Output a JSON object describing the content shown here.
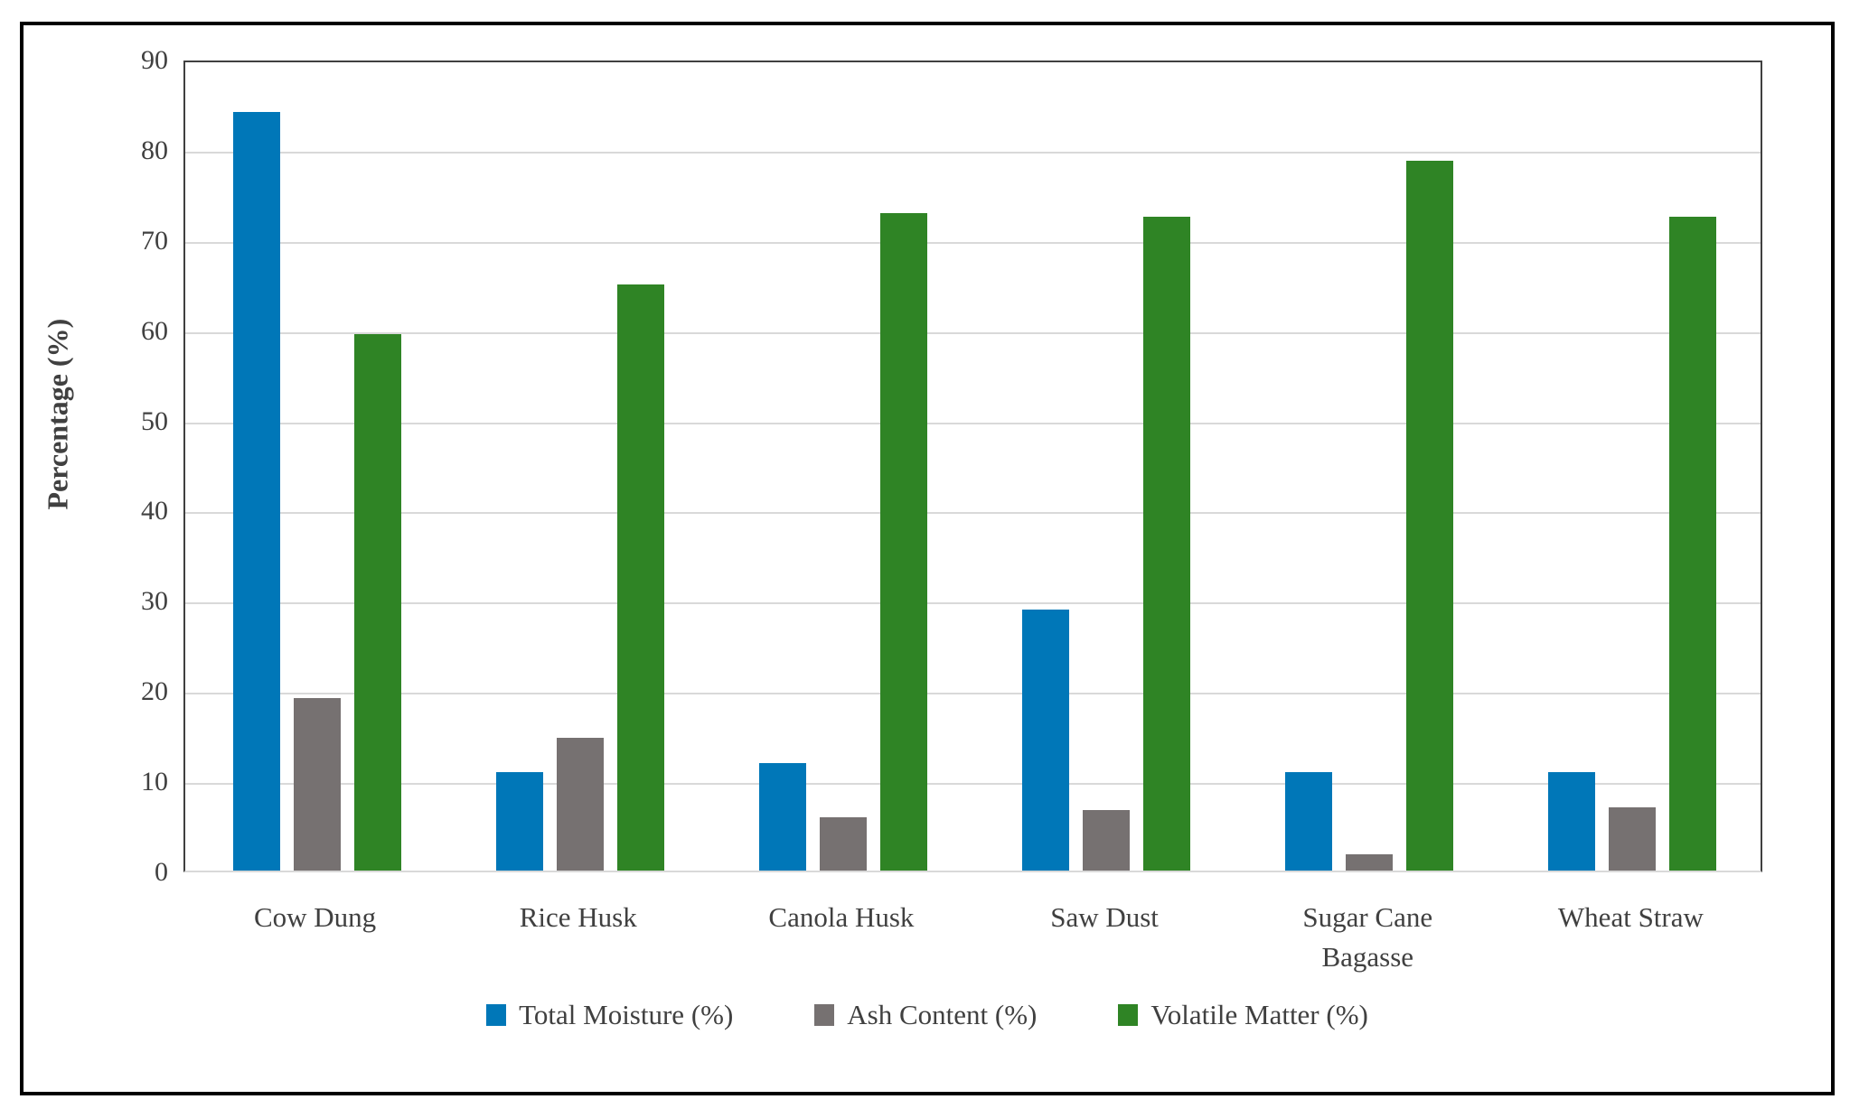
{
  "chart_data": {
    "type": "bar",
    "categories": [
      "Cow Dung",
      "Rice Husk",
      "Canola Husk",
      "Saw Dust",
      "Sugar Cane Bagasse",
      "Wheat Straw"
    ],
    "series": [
      {
        "name": "Total Moisture (%)",
        "color": "#0077B8",
        "values": [
          84.3,
          10.9,
          11.9,
          29.0,
          10.9,
          10.9
        ]
      },
      {
        "name": "Ash Content (%)",
        "color": "#767171",
        "values": [
          19.2,
          14.8,
          5.9,
          6.7,
          1.8,
          7.0
        ]
      },
      {
        "name": "Volatile Matter (%)",
        "color": "#2F8425",
        "values": [
          59.6,
          65.1,
          73.0,
          72.6,
          78.9,
          72.6
        ]
      }
    ],
    "title": "",
    "xlabel": "",
    "ylabel": "Percentage (%)",
    "ylim": [
      0,
      90
    ],
    "ytick_step": 10,
    "yticks": [
      0,
      10,
      20,
      30,
      40,
      50,
      60,
      70,
      80,
      90
    ],
    "grid": true,
    "legend_position": "bottom-center",
    "colors": {
      "gridline": "#D9D9D9",
      "axis_line": "#404040",
      "text": "#404040",
      "outer_border": "#000000",
      "background": "#FFFFFF"
    }
  }
}
